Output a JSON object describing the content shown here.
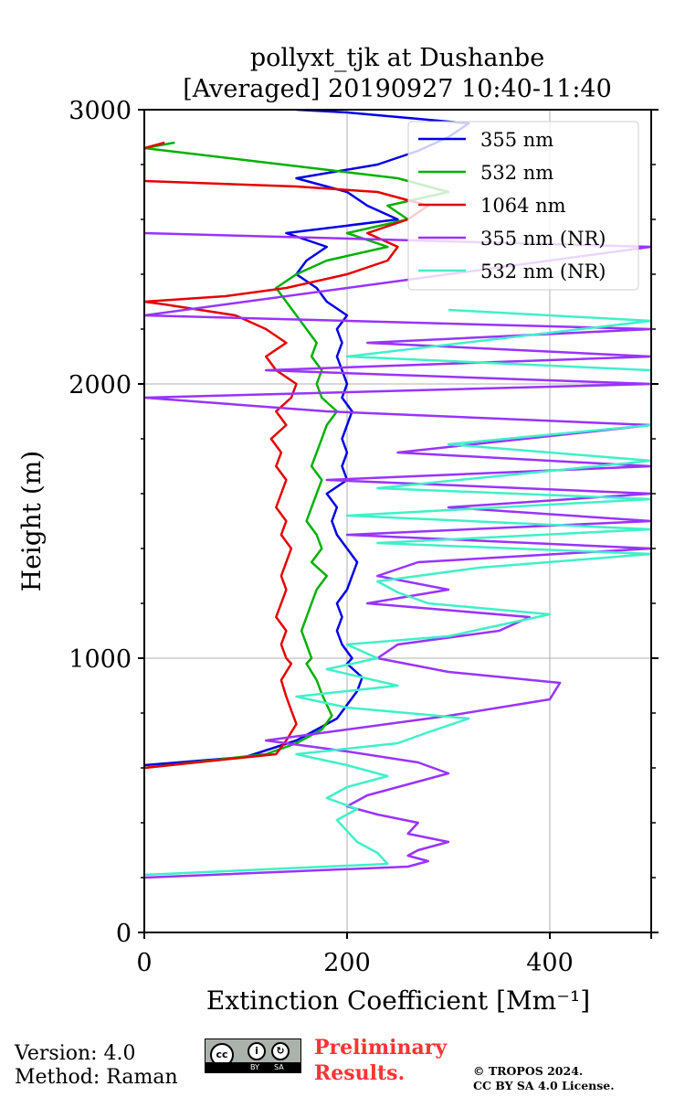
{
  "chart_data": {
    "type": "line",
    "title_lines": [
      "pollyxt_tjk at Dushanbe",
      "[Averaged] 20190927 10:40-11:40"
    ],
    "xlabel": "Extinction Coefficient [Mm⁻¹]",
    "ylabel": "Height (m)",
    "xlim": [
      0,
      500
    ],
    "ylim": [
      0,
      3000
    ],
    "xticks": [
      0,
      200,
      400
    ],
    "yticks": [
      0,
      1000,
      2000,
      3000
    ],
    "xtick_labels": [
      "0",
      "200",
      "400"
    ],
    "ytick_labels": [
      "0",
      "1000",
      "2000",
      "3000"
    ],
    "grid": true,
    "legend_position": "top-right",
    "series": [
      {
        "name": "355 nm",
        "color": "#0000e6",
        "points": [
          [
            0,
            610
          ],
          [
            100,
            640
          ],
          [
            150,
            700
          ],
          [
            170,
            740
          ],
          [
            190,
            780
          ],
          [
            200,
            830
          ],
          [
            210,
            880
          ],
          [
            215,
            930
          ],
          [
            200,
            980
          ],
          [
            205,
            1000
          ],
          [
            195,
            1050
          ],
          [
            190,
            1100
          ],
          [
            195,
            1150
          ],
          [
            190,
            1200
          ],
          [
            200,
            1250
          ],
          [
            205,
            1300
          ],
          [
            210,
            1350
          ],
          [
            200,
            1400
          ],
          [
            190,
            1450
          ],
          [
            185,
            1500
          ],
          [
            190,
            1550
          ],
          [
            180,
            1600
          ],
          [
            200,
            1650
          ],
          [
            195,
            1700
          ],
          [
            200,
            1750
          ],
          [
            195,
            1800
          ],
          [
            200,
            1850
          ],
          [
            205,
            1900
          ],
          [
            195,
            1950
          ],
          [
            200,
            2000
          ],
          [
            195,
            2050
          ],
          [
            190,
            2100
          ],
          [
            195,
            2150
          ],
          [
            190,
            2200
          ],
          [
            200,
            2250
          ],
          [
            180,
            2300
          ],
          [
            170,
            2350
          ],
          [
            150,
            2400
          ],
          [
            160,
            2450
          ],
          [
            180,
            2500
          ],
          [
            140,
            2550
          ],
          [
            250,
            2600
          ],
          [
            220,
            2650
          ],
          [
            200,
            2700
          ],
          [
            150,
            2750
          ],
          [
            230,
            2800
          ],
          [
            270,
            2850
          ],
          [
            300,
            2900
          ],
          [
            320,
            2950
          ],
          [
            200,
            2990
          ],
          [
            150,
            3000
          ]
        ]
      },
      {
        "name": "532 nm",
        "color": "#00b000",
        "points": [
          [
            0,
            600
          ],
          [
            120,
            650
          ],
          [
            150,
            690
          ],
          [
            175,
            740
          ],
          [
            185,
            790
          ],
          [
            180,
            830
          ],
          [
            175,
            870
          ],
          [
            170,
            920
          ],
          [
            160,
            980
          ],
          [
            165,
            1000
          ],
          [
            160,
            1050
          ],
          [
            155,
            1100
          ],
          [
            160,
            1150
          ],
          [
            165,
            1200
          ],
          [
            170,
            1250
          ],
          [
            180,
            1300
          ],
          [
            165,
            1350
          ],
          [
            175,
            1400
          ],
          [
            170,
            1450
          ],
          [
            160,
            1500
          ],
          [
            165,
            1550
          ],
          [
            170,
            1600
          ],
          [
            175,
            1650
          ],
          [
            165,
            1700
          ],
          [
            170,
            1750
          ],
          [
            175,
            1800
          ],
          [
            180,
            1850
          ],
          [
            190,
            1900
          ],
          [
            175,
            1950
          ],
          [
            170,
            2000
          ],
          [
            175,
            2050
          ],
          [
            165,
            2100
          ],
          [
            170,
            2150
          ],
          [
            160,
            2200
          ],
          [
            150,
            2250
          ],
          [
            140,
            2300
          ],
          [
            130,
            2350
          ],
          [
            150,
            2400
          ],
          [
            180,
            2450
          ],
          [
            240,
            2500
          ],
          [
            200,
            2550
          ],
          [
            260,
            2600
          ],
          [
            240,
            2650
          ],
          [
            300,
            2700
          ],
          [
            250,
            2750
          ],
          [
            0,
            2860
          ],
          [
            30,
            2880
          ]
        ]
      },
      {
        "name": "1064 nm",
        "color": "#e60000",
        "points": [
          [
            0,
            600
          ],
          [
            130,
            650
          ],
          [
            140,
            700
          ],
          [
            150,
            760
          ],
          [
            145,
            810
          ],
          [
            140,
            860
          ],
          [
            135,
            920
          ],
          [
            145,
            980
          ],
          [
            140,
            1000
          ],
          [
            135,
            1050
          ],
          [
            140,
            1100
          ],
          [
            130,
            1150
          ],
          [
            135,
            1200
          ],
          [
            140,
            1250
          ],
          [
            135,
            1300
          ],
          [
            140,
            1350
          ],
          [
            145,
            1400
          ],
          [
            135,
            1450
          ],
          [
            140,
            1500
          ],
          [
            130,
            1550
          ],
          [
            135,
            1600
          ],
          [
            140,
            1650
          ],
          [
            130,
            1700
          ],
          [
            135,
            1750
          ],
          [
            125,
            1800
          ],
          [
            140,
            1850
          ],
          [
            130,
            1900
          ],
          [
            145,
            1950
          ],
          [
            150,
            2000
          ],
          [
            130,
            2050
          ],
          [
            120,
            2100
          ],
          [
            140,
            2150
          ],
          [
            120,
            2200
          ],
          [
            90,
            2250
          ],
          [
            20,
            2290
          ],
          [
            0,
            2300
          ],
          [
            80,
            2320
          ],
          [
            140,
            2350
          ],
          [
            200,
            2400
          ],
          [
            240,
            2450
          ],
          [
            250,
            2500
          ],
          [
            220,
            2550
          ],
          [
            260,
            2600
          ],
          [
            280,
            2650
          ],
          [
            230,
            2700
          ],
          [
            150,
            2720
          ],
          [
            0,
            2740
          ],
          [
            0,
            2860
          ],
          [
            20,
            2880
          ]
        ]
      },
      {
        "name": "355 nm (NR)",
        "color": "#9933ff",
        "points": [
          [
            0,
            200
          ],
          [
            260,
            240
          ],
          [
            280,
            260
          ],
          [
            260,
            280
          ],
          [
            270,
            300
          ],
          [
            300,
            330
          ],
          [
            260,
            360
          ],
          [
            270,
            400
          ],
          [
            230,
            430
          ],
          [
            200,
            460
          ],
          [
            220,
            500
          ],
          [
            260,
            540
          ],
          [
            300,
            580
          ],
          [
            270,
            620
          ],
          [
            200,
            660
          ],
          [
            120,
            700
          ],
          [
            200,
            740
          ],
          [
            300,
            790
          ],
          [
            400,
            850
          ],
          [
            410,
            910
          ],
          [
            300,
            950
          ],
          [
            230,
            1000
          ],
          [
            250,
            1050
          ],
          [
            350,
            1100
          ],
          [
            380,
            1150
          ],
          [
            220,
            1200
          ],
          [
            300,
            1250
          ],
          [
            230,
            1300
          ],
          [
            270,
            1350
          ],
          [
            500,
            1400
          ],
          [
            200,
            1450
          ],
          [
            500,
            1500
          ],
          [
            300,
            1550
          ],
          [
            500,
            1600
          ],
          [
            180,
            1650
          ],
          [
            500,
            1700
          ],
          [
            250,
            1750
          ],
          [
            500,
            1850
          ],
          [
            180,
            1900
          ],
          [
            0,
            1950
          ],
          [
            500,
            2000
          ],
          [
            120,
            2050
          ],
          [
            500,
            2100
          ],
          [
            220,
            2150
          ],
          [
            500,
            2200
          ],
          [
            0,
            2250
          ],
          [
            500,
            2500
          ],
          [
            0,
            2550
          ]
        ]
      },
      {
        "name": "532 nm (NR)",
        "color": "#40f0c8",
        "points": [
          [
            0,
            210
          ],
          [
            240,
            250
          ],
          [
            230,
            290
          ],
          [
            210,
            330
          ],
          [
            200,
            370
          ],
          [
            190,
            410
          ],
          [
            210,
            450
          ],
          [
            180,
            490
          ],
          [
            200,
            530
          ],
          [
            240,
            570
          ],
          [
            200,
            610
          ],
          [
            150,
            650
          ],
          [
            250,
            690
          ],
          [
            280,
            730
          ],
          [
            320,
            780
          ],
          [
            200,
            820
          ],
          [
            150,
            860
          ],
          [
            250,
            900
          ],
          [
            180,
            960
          ],
          [
            230,
            1000
          ],
          [
            200,
            1050
          ],
          [
            300,
            1080
          ],
          [
            350,
            1120
          ],
          [
            400,
            1160
          ],
          [
            280,
            1200
          ],
          [
            250,
            1240
          ],
          [
            230,
            1280
          ],
          [
            330,
            1330
          ],
          [
            500,
            1380
          ],
          [
            230,
            1420
          ],
          [
            500,
            1470
          ],
          [
            200,
            1520
          ],
          [
            500,
            1580
          ],
          [
            230,
            1620
          ],
          [
            500,
            1720
          ],
          [
            300,
            1780
          ],
          [
            500,
            1850
          ],
          [
            500,
            2000
          ],
          [
            500,
            2050
          ],
          [
            200,
            2100
          ],
          [
            500,
            2230
          ],
          [
            300,
            2270
          ]
        ]
      }
    ]
  },
  "footer": {
    "version": "Version: 4.0",
    "method": "Method: Raman",
    "prelim_line1": "Preliminary",
    "prelim_line2": "Results.",
    "copyright_line1": "© TROPOS 2024.",
    "copyright_line2": "CC BY SA 4.0 License.",
    "cc_by": "BY",
    "cc_sa": "SA",
    "cc_mark": "cc"
  }
}
